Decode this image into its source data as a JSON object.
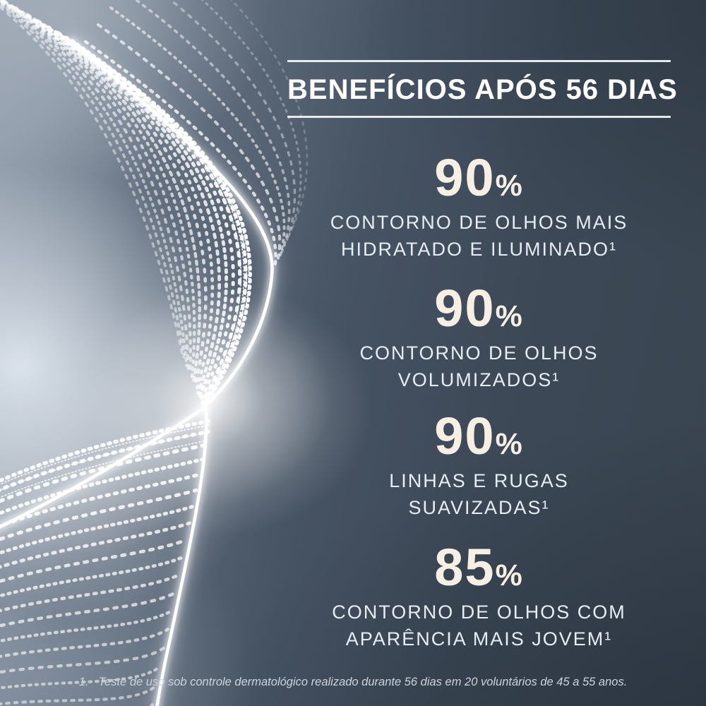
{
  "theme": {
    "background_dark": "#3a4654",
    "background_light": "#aebbca",
    "glow": "#ffffff",
    "title_color": "#ffffff",
    "value_color": "#f7efe3",
    "desc_color": "#e6edf4",
    "footnote_color": "#ccd4dc",
    "rule_color": "#eef2f6"
  },
  "header": {
    "title": "BENEFÍCIOS APÓS 56 DIAS"
  },
  "stats": [
    {
      "value": "90",
      "unit": "%",
      "lines": [
        "CONTORNO DE OLHOS MAIS",
        "HIDRATADO E ILUMINADO¹"
      ]
    },
    {
      "value": "90",
      "unit": "%",
      "lines": [
        "CONTORNO DE OLHOS",
        "VOLUMIZADOS¹"
      ]
    },
    {
      "value": "90",
      "unit": "%",
      "lines": [
        "LINHAS E RUGAS",
        "SUAVIZADAS¹"
      ]
    },
    {
      "value": "85",
      "unit": "%",
      "lines": [
        "CONTORNO DE OLHOS COM",
        "APARÊNCIA MAIS JOVEM¹"
      ]
    }
  ],
  "footnote": {
    "marker": "1.",
    "text": "Teste de uso sob controle dermatológico realizado durante 56 dias em 20 voluntários de 45 a 55 anos."
  },
  "decor": {
    "wave": "glowing-dotted-ribbon"
  }
}
